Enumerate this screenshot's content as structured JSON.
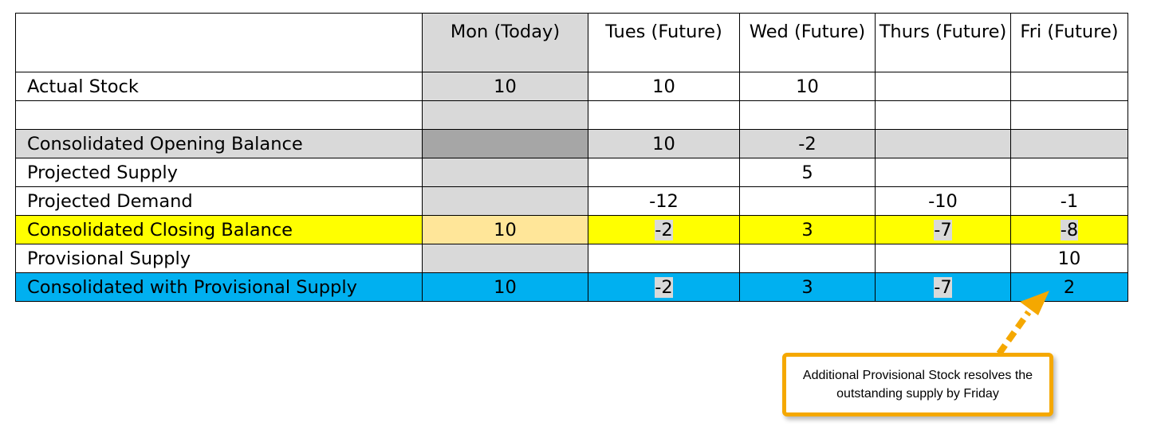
{
  "columns": [
    "",
    "Mon (Today)",
    "Tues (Future)",
    "Wed (Future)",
    "Thurs (Future)",
    "Fri (Future)"
  ],
  "rows": [
    {
      "label": "Actual Stock",
      "cells": [
        "10",
        "10",
        "10",
        "",
        ""
      ]
    },
    {
      "label": "",
      "cells": [
        "",
        "",
        "",
        "",
        ""
      ]
    },
    {
      "label": "Consolidated Opening Balance",
      "cells": [
        "",
        "10",
        "-2",
        "",
        ""
      ]
    },
    {
      "label": "Projected Supply",
      "cells": [
        "",
        "",
        "5",
        "",
        ""
      ]
    },
    {
      "label": "Projected Demand",
      "cells": [
        "",
        "-12",
        "",
        "-10",
        "-1"
      ]
    },
    {
      "label": "Consolidated Closing Balance",
      "cells": [
        "10",
        "-2",
        "3",
        "-7",
        "-8"
      ]
    },
    {
      "label": "Provisional Supply",
      "cells": [
        "",
        "",
        "",
        "",
        "10"
      ]
    },
    {
      "label": "Consolidated with Provisional Supply",
      "cells": [
        "10",
        "-2",
        "3",
        "-7",
        "2"
      ]
    }
  ],
  "callout": {
    "text": "Additional Provisional Stock resolves the outstanding supply by Friday"
  },
  "colors": {
    "today_column": "#d9d9d9",
    "opening_balance_row": "#d9d9d9",
    "opening_balance_today": "#a6a6a6",
    "closing_balance_row": "#ffff00",
    "closing_balance_today": "#ffe699",
    "provisional_row": "#00b0f0",
    "negative_highlight": "#d9d9d9",
    "callout_border": "#f5a800"
  }
}
